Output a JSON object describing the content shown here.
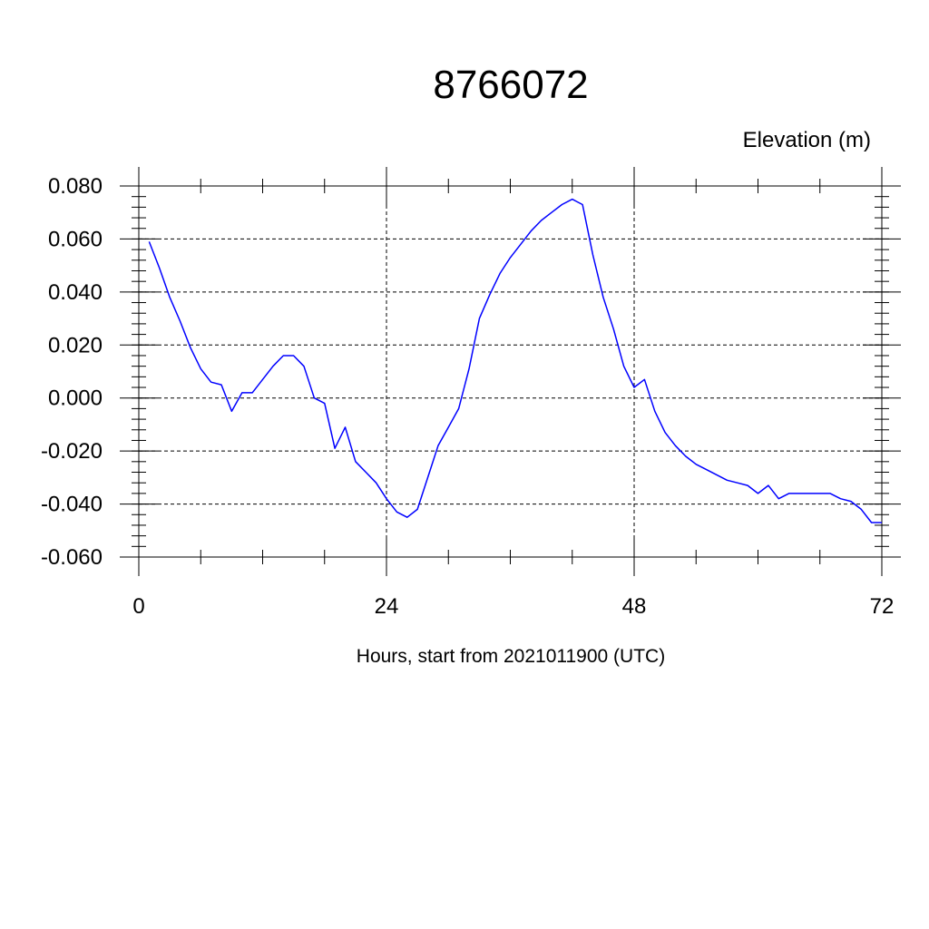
{
  "chart_data": {
    "type": "line",
    "title": "8766072",
    "ylabel": "Elevation (m)",
    "xlabel": "Hours, start from 2021011900 (UTC)",
    "xlim": [
      0,
      72
    ],
    "ylim": [
      -0.06,
      0.08
    ],
    "xticks": [
      0,
      24,
      48,
      72
    ],
    "xtick_labels": [
      "0",
      "24",
      "48",
      "72"
    ],
    "yticks": [
      -0.06,
      -0.04,
      -0.02,
      0.0,
      0.02,
      0.04,
      0.06,
      0.08
    ],
    "ytick_labels": [
      "-0.060",
      "-0.040",
      "-0.020",
      "0.000",
      "0.020",
      "0.040",
      "0.060",
      "0.080"
    ],
    "grid": true,
    "line_color": "#0000ff",
    "series": [
      {
        "x": [
          1,
          2,
          3,
          4,
          5,
          6,
          7,
          8,
          9,
          10,
          11,
          12,
          13,
          14,
          15,
          16,
          17,
          18,
          19,
          20,
          21,
          22,
          23,
          24,
          25,
          26,
          27,
          28,
          29,
          30,
          31,
          32,
          33,
          34,
          35,
          36,
          37,
          38,
          39,
          40,
          41,
          42,
          43,
          44,
          45,
          46,
          47,
          48,
          49,
          50,
          51,
          52,
          53,
          54,
          55,
          56,
          57,
          58,
          59,
          60,
          61,
          62,
          63,
          64,
          65,
          66,
          67,
          68,
          69,
          70,
          71,
          72
        ],
        "values": [
          0.059,
          0.049,
          0.038,
          0.029,
          0.019,
          0.011,
          0.006,
          0.005,
          -0.005,
          0.002,
          0.002,
          0.007,
          0.012,
          0.016,
          0.016,
          0.012,
          0.0,
          -0.002,
          -0.019,
          -0.011,
          -0.024,
          -0.028,
          -0.032,
          -0.038,
          -0.043,
          -0.045,
          -0.042,
          -0.03,
          -0.018,
          -0.011,
          -0.004,
          0.011,
          0.03,
          0.039,
          0.047,
          0.053,
          0.058,
          0.063,
          0.067,
          0.07,
          0.073,
          0.075,
          0.073,
          0.054,
          0.038,
          0.026,
          0.012,
          0.004,
          0.007,
          -0.005,
          -0.013,
          -0.018,
          -0.022,
          -0.025,
          -0.027,
          -0.029,
          -0.031,
          -0.032,
          -0.033,
          -0.036,
          -0.033,
          -0.038,
          -0.036,
          -0.036,
          -0.036,
          -0.036,
          -0.036,
          -0.038,
          -0.039,
          -0.042,
          -0.047,
          -0.047
        ]
      }
    ]
  }
}
